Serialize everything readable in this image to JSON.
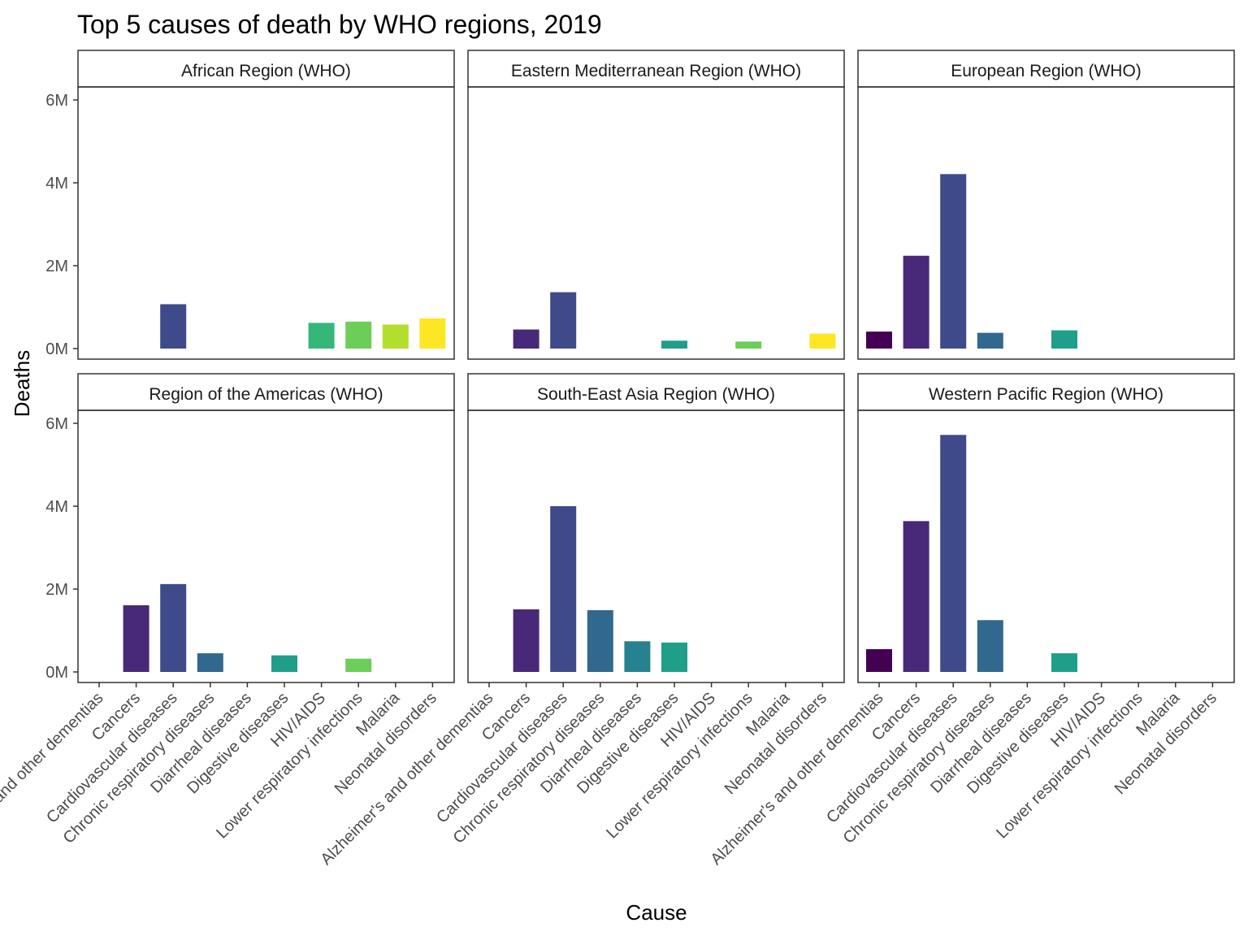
{
  "chart_data": {
    "type": "bar",
    "title": "Top 5 causes of death by WHO regions, 2019",
    "xlabel": "Cause",
    "ylabel": "Deaths",
    "ylim": [
      0,
      7000000
    ],
    "y_ticks": [
      0,
      2000000,
      4000000,
      6000000
    ],
    "y_tick_labels": [
      "0M",
      "2M",
      "4M",
      "6M"
    ],
    "grid": false,
    "legend": "none",
    "categories": [
      "Alzheimer's and other dementias",
      "Cancers",
      "Cardiovascular diseases",
      "Chronic respiratory diseases",
      "Diarrheal diseases",
      "Digestive diseases",
      "HIV/AIDS",
      "Lower respiratory infections",
      "Malaria",
      "Neonatal disorders"
    ],
    "category_colors": [
      "#440154",
      "#482878",
      "#3E4A89",
      "#31688E",
      "#26828E",
      "#1F9E89",
      "#35B779",
      "#6DCD59",
      "#B4DE2C",
      "#FDE725"
    ],
    "panels": [
      {
        "region": "African Region (WHO)",
        "values": [
          null,
          null,
          1070000,
          null,
          null,
          null,
          620000,
          650000,
          580000,
          730000
        ]
      },
      {
        "region": "Eastern Mediterranean Region (WHO)",
        "values": [
          null,
          460000,
          1360000,
          null,
          null,
          190000,
          null,
          170000,
          null,
          360000
        ]
      },
      {
        "region": "European Region (WHO)",
        "values": [
          410000,
          2240000,
          4210000,
          380000,
          null,
          440000,
          null,
          null,
          null,
          null
        ]
      },
      {
        "region": "Region of the Americas (WHO)",
        "values": [
          null,
          1610000,
          2120000,
          450000,
          null,
          400000,
          null,
          320000,
          null,
          null
        ]
      },
      {
        "region": "South-East Asia Region (WHO)",
        "values": [
          null,
          1510000,
          4000000,
          1490000,
          740000,
          710000,
          null,
          null,
          null,
          null
        ]
      },
      {
        "region": "Western Pacific Region (WHO)",
        "values": [
          550000,
          3640000,
          5720000,
          1250000,
          null,
          450000,
          null,
          null,
          null,
          null
        ]
      }
    ]
  }
}
